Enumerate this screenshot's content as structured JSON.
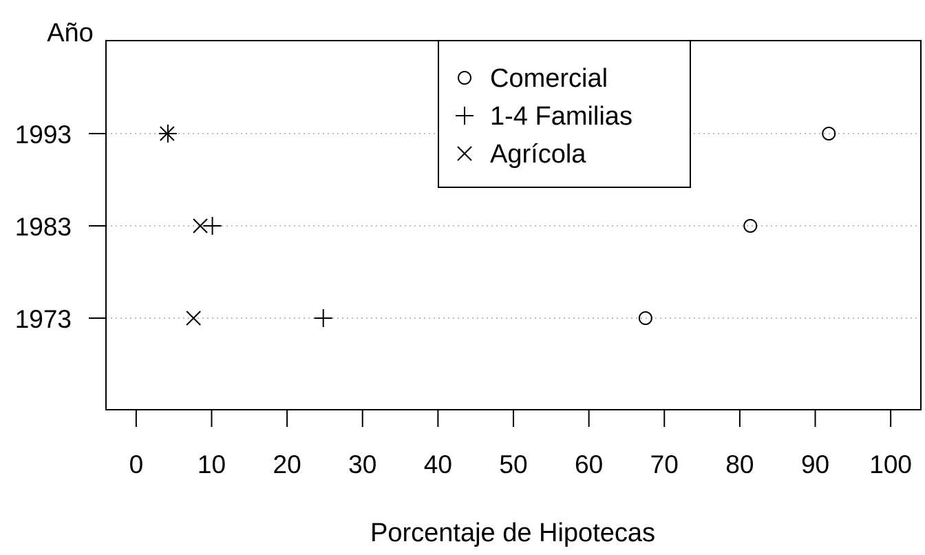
{
  "chart_data": {
    "type": "scatter",
    "title": "",
    "xlabel": "Porcentaje de Hipotecas",
    "ylabel": "Año",
    "xlim": [
      -4,
      104
    ],
    "x_ticks": [
      0,
      10,
      20,
      30,
      40,
      50,
      60,
      70,
      80,
      90,
      100
    ],
    "y_categories": [
      "1973",
      "1983",
      "1993"
    ],
    "grid": "dotted horizontal lines at each year",
    "legend_position": "top-center",
    "series": [
      {
        "name": "Comercial",
        "marker": "circle",
        "points": [
          {
            "year": "1973",
            "x": 67.5
          },
          {
            "year": "1983",
            "x": 81.4
          },
          {
            "year": "1993",
            "x": 91.8
          }
        ]
      },
      {
        "name": "1-4 Familias",
        "marker": "plus",
        "points": [
          {
            "year": "1973",
            "x": 24.8
          },
          {
            "year": "1983",
            "x": 10.1
          },
          {
            "year": "1993",
            "x": 4.2
          }
        ]
      },
      {
        "name": "Agrícola",
        "marker": "cross",
        "points": [
          {
            "year": "1973",
            "x": 7.6
          },
          {
            "year": "1983",
            "x": 8.5
          },
          {
            "year": "1993",
            "x": 4.1
          }
        ]
      }
    ]
  }
}
